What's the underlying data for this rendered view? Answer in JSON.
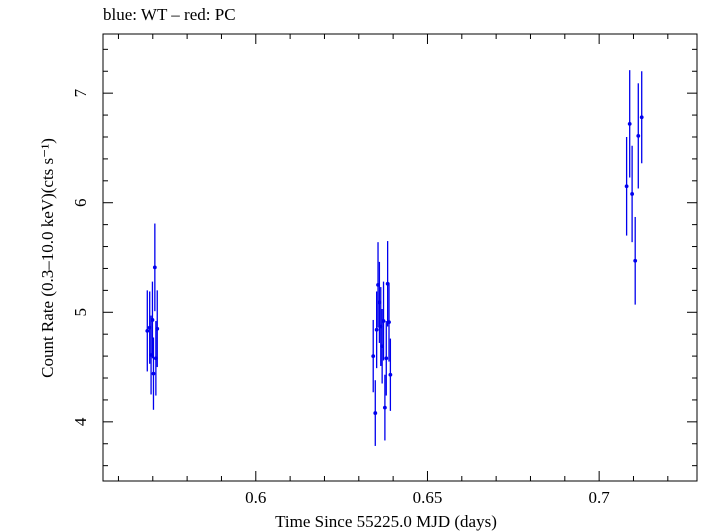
{
  "chart_data": {
    "type": "scatter",
    "title": "blue: WT – red: PC",
    "xlabel": "Time Since 55225.0 MJD (days)",
    "ylabel": "Count Rate (0.3–10.0 keV)(cts s⁻¹)",
    "xlim": [
      0.5555,
      0.7285
    ],
    "ylim": [
      3.46,
      7.54
    ],
    "xticks": [
      0.6,
      0.65,
      0.7
    ],
    "xtick_labels": [
      "0.6",
      "0.65",
      "0.7"
    ],
    "yticks": [
      4,
      5,
      6,
      7
    ],
    "ytick_labels": [
      "4",
      "5",
      "6",
      "7"
    ],
    "grid": false,
    "series": [
      {
        "color": "#0000ee",
        "points": [
          {
            "x": 0.5684,
            "y": 4.83,
            "err": 0.37
          },
          {
            "x": 0.5691,
            "y": 4.86,
            "err": 0.33
          },
          {
            "x": 0.5695,
            "y": 4.61,
            "err": 0.36
          },
          {
            "x": 0.5699,
            "y": 4.93,
            "err": 0.35
          },
          {
            "x": 0.5702,
            "y": 4.44,
            "err": 0.33
          },
          {
            "x": 0.5706,
            "y": 5.41,
            "err": 0.4
          },
          {
            "x": 0.5709,
            "y": 4.58,
            "err": 0.34
          },
          {
            "x": 0.5713,
            "y": 4.85,
            "err": 0.35
          },
          {
            "x": 0.6342,
            "y": 4.6,
            "err": 0.33
          },
          {
            "x": 0.6348,
            "y": 4.08,
            "err": 0.3
          },
          {
            "x": 0.6352,
            "y": 4.84,
            "err": 0.35
          },
          {
            "x": 0.6356,
            "y": 5.25,
            "err": 0.39
          },
          {
            "x": 0.636,
            "y": 5.09,
            "err": 0.37
          },
          {
            "x": 0.6364,
            "y": 4.87,
            "err": 0.36
          },
          {
            "x": 0.6368,
            "y": 4.69,
            "err": 0.34
          },
          {
            "x": 0.6372,
            "y": 4.92,
            "err": 0.36
          },
          {
            "x": 0.6376,
            "y": 4.13,
            "err": 0.3
          },
          {
            "x": 0.638,
            "y": 4.58,
            "err": 0.34
          },
          {
            "x": 0.6384,
            "y": 5.26,
            "err": 0.39
          },
          {
            "x": 0.6388,
            "y": 4.91,
            "err": 0.36
          },
          {
            "x": 0.6392,
            "y": 4.43,
            "err": 0.33
          },
          {
            "x": 0.708,
            "y": 6.15,
            "err": 0.45
          },
          {
            "x": 0.7089,
            "y": 6.72,
            "err": 0.49
          },
          {
            "x": 0.7096,
            "y": 6.08,
            "err": 0.44
          },
          {
            "x": 0.7105,
            "y": 5.47,
            "err": 0.4
          },
          {
            "x": 0.7114,
            "y": 6.61,
            "err": 0.48
          },
          {
            "x": 0.7124,
            "y": 6.78,
            "err": 0.42
          }
        ]
      }
    ]
  }
}
